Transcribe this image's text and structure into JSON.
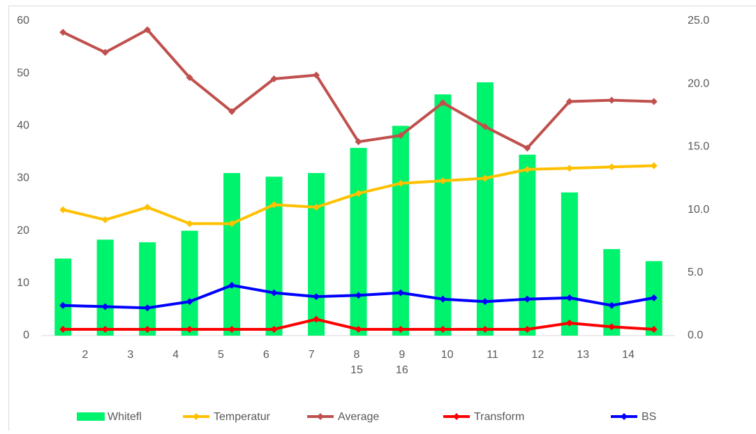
{
  "chart_data": {
    "type": "bar-line",
    "categories": [
      null,
      null,
      null,
      null,
      null,
      null,
      null,
      null,
      null,
      null,
      null,
      null,
      null,
      null,
      null
    ],
    "x_labels": [
      "2",
      "3",
      "4",
      "5",
      "6",
      "7",
      "8",
      "9",
      "10",
      "11",
      "12",
      "13",
      "14"
    ],
    "x_labels_second_row": [
      "15",
      "16"
    ],
    "series": [
      {
        "name": "Whitefl",
        "type": "bar",
        "color": "#00f36d",
        "axis": "y",
        "values": [
          14.7,
          18.3,
          17.8,
          20,
          31,
          30.3,
          31,
          35.8,
          40,
          46,
          48.3,
          34.5,
          27.3,
          16.5,
          14.2
        ]
      },
      {
        "name": "Temperatur",
        "type": "line",
        "color": "#ffc000",
        "axis": "y2",
        "values": [
          10.0,
          9.2,
          10.2,
          8.9,
          8.9,
          10.4,
          10.2,
          11.3,
          12.1,
          12.3,
          12.5,
          13.2,
          13.3,
          13.4,
          13.5
        ]
      },
      {
        "name": "Average",
        "type": "line",
        "color": "#c0504d",
        "axis": "y2",
        "values": [
          24.1,
          22.5,
          24.3,
          20.5,
          17.8,
          20.4,
          20.7,
          15.4,
          15.9,
          18.5,
          16.6,
          14.9,
          18.6,
          18.7,
          18.6
        ]
      },
      {
        "name": "Transform",
        "type": "line",
        "color": "#ff0000",
        "axis": "y2",
        "values": [
          0.5,
          0.5,
          0.5,
          0.5,
          0.5,
          0.5,
          1.3,
          0.5,
          0.5,
          0.5,
          0.5,
          0.5,
          1.0,
          0.7,
          0.5
        ]
      },
      {
        "name": "BS",
        "type": "line",
        "color": "#0000ff",
        "axis": "y2",
        "values": [
          2.4,
          2.3,
          2.2,
          2.7,
          4.0,
          3.4,
          3.1,
          3.2,
          3.4,
          2.9,
          2.7,
          2.9,
          3.0,
          2.4,
          3.0
        ]
      }
    ],
    "ylim": [
      0,
      60
    ],
    "yticks": [
      0,
      10,
      20,
      30,
      40,
      50,
      60
    ],
    "y2lim": [
      0,
      25
    ],
    "y2ticks": [
      {
        "value": 0,
        "label": "0.0"
      },
      {
        "value": 5,
        "label": "5.0"
      },
      {
        "value": 10,
        "label": "10.0"
      },
      {
        "value": 15,
        "label": "15.0"
      },
      {
        "value": 20,
        "label": "20.0"
      },
      {
        "value": 25,
        "label": "25.0"
      }
    ],
    "grid": false,
    "legend": "bottom"
  }
}
